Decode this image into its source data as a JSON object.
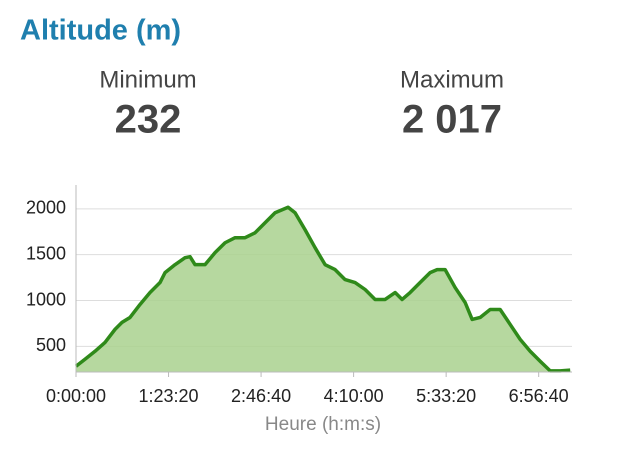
{
  "title": "Altitude (m)",
  "stats": [
    {
      "label": "Minimum",
      "value": "232"
    },
    {
      "label": "Maximum",
      "value": "2 017"
    }
  ],
  "chart_data": {
    "type": "area",
    "x_label": "Heure (h:m:s)",
    "x": [
      0,
      486,
      1027,
      1568,
      2108,
      2486,
      2919,
      3459,
      4000,
      4540,
      4811,
      5351,
      5892,
      6162,
      6432,
      6973,
      7513,
      8054,
      8594,
      9135,
      9675,
      10216,
      10756,
      11459,
      11837,
      12378,
      12918,
      13459,
      13999,
      14540,
      15080,
      15621,
      16161,
      16702,
      17242,
      17621,
      18053,
      18594,
      19134,
      19513,
      19945,
      20486,
      21026,
      21405,
      21837,
      22378,
      22918,
      23459,
      23999,
      24540,
      25080,
      25621,
      26161,
      26702
    ],
    "series": [
      {
        "name": "Altitude",
        "color": "#2f8a1a",
        "fill": "#a9d18e",
        "values": [
          283,
          359,
          446,
          543,
          685,
          761,
          815,
          957,
          1087,
          1196,
          1304,
          1391,
          1467,
          1478,
          1391,
          1391,
          1522,
          1630,
          1685,
          1685,
          1739,
          1848,
          1957,
          2017,
          1957,
          1772,
          1576,
          1391,
          1337,
          1228,
          1196,
          1120,
          1011,
          1011,
          1087,
          1011,
          1087,
          1196,
          1304,
          1337,
          1337,
          1141,
          978,
          793,
          815,
          902,
          902,
          739,
          576,
          446,
          337,
          232,
          232,
          240
        ]
      }
    ],
    "xlim": [
      0,
      26800
    ],
    "ylim": [
      220,
      2260
    ],
    "xticks": [
      {
        "value": 0,
        "label": "0:00:00"
      },
      {
        "value": 5000,
        "label": "1:23:20"
      },
      {
        "value": 10000,
        "label": "2:46:40"
      },
      {
        "value": 15000,
        "label": "4:10:00"
      },
      {
        "value": 20000,
        "label": "5:33:20"
      },
      {
        "value": 25000,
        "label": "6:56:40"
      }
    ],
    "yticks": [
      500,
      1000,
      1500,
      2000
    ],
    "grid": true
  }
}
